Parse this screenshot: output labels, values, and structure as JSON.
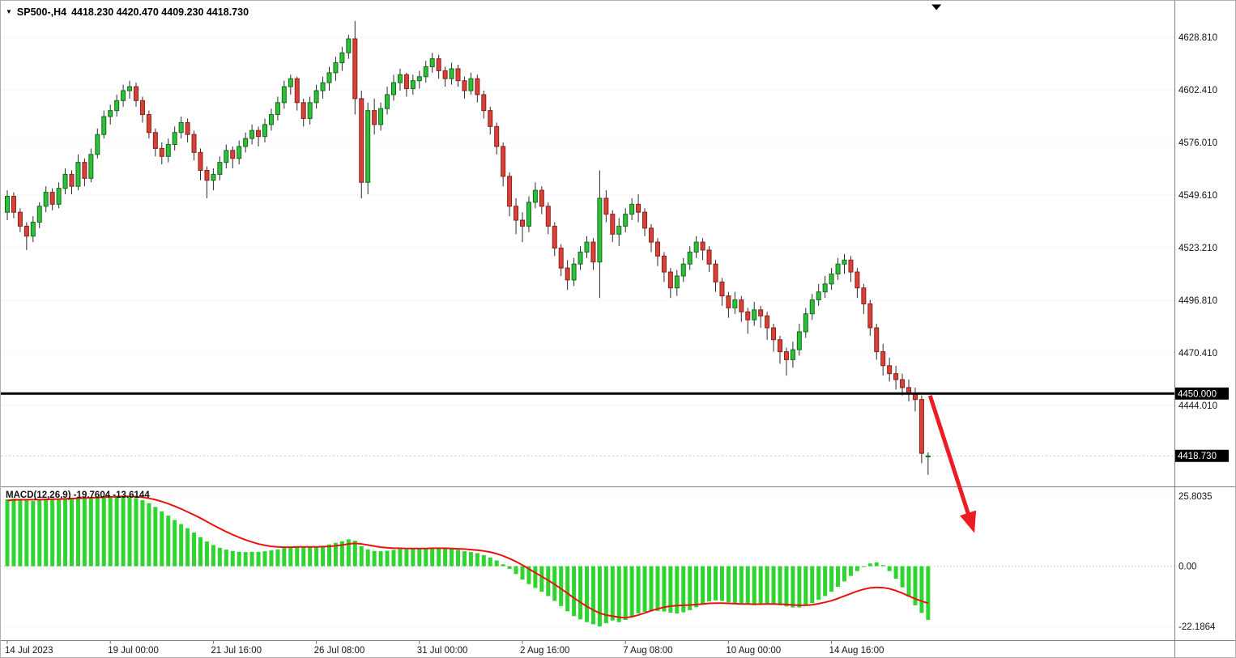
{
  "header": {
    "expander_icon": "▼",
    "symbol": "SP500-,H4",
    "ohlc_text": "4418.230 4420.470 4409.230 4418.730"
  },
  "colors": {
    "bull_fill": "#2fbf3a",
    "bull_stroke": "#0f6d18",
    "bear_fill": "#d7413a",
    "bear_stroke": "#8c1f18",
    "wick": "#2b2b2b",
    "hist": "#2ed52e",
    "signal": "#e8140c",
    "arrow": "#ec1c24",
    "grid": "#dcdcdc",
    "axis_text": "#151515",
    "badge_bg": "#000000",
    "badge_text": "#ffffff",
    "hline": "#000000",
    "separator": "#808080",
    "bid_line": "#cccccc"
  },
  "chart_data": [
    {
      "type": "candlestick",
      "symbol": "SP500-",
      "timeframe": "H4",
      "current_bar": {
        "open": 4418.23,
        "high": 4420.47,
        "low": 4409.23,
        "close": 4418.73
      },
      "horizontal_line_level": 4450.0,
      "y_axis": [
        {
          "value": 4628.81,
          "label": "4628.810"
        },
        {
          "value": 4602.41,
          "label": "4602.410"
        },
        {
          "value": 4576.01,
          "label": "4576.010"
        },
        {
          "value": 4549.61,
          "label": "4549.610"
        },
        {
          "value": 4523.21,
          "label": "4523.210"
        },
        {
          "value": 4496.81,
          "label": "4496.810"
        },
        {
          "value": 4470.41,
          "label": "4470.410"
        },
        {
          "value": 4444.01,
          "label": "4444.010"
        }
      ],
      "badges": [
        {
          "value": 4450.0,
          "label": "4450.000",
          "name": "hline-level-badge"
        },
        {
          "value": 4418.73,
          "label": "4418.730",
          "name": "bid-price-badge"
        }
      ],
      "x_ticks": [
        {
          "bar": 0,
          "label": "14 Jul 2023"
        },
        {
          "bar": 16,
          "label": "19 Jul 00:00"
        },
        {
          "bar": 32,
          "label": "21 Jul 16:00"
        },
        {
          "bar": 48,
          "label": "26 Jul 08:00"
        },
        {
          "bar": 64,
          "label": "31 Jul 00:00"
        },
        {
          "bar": 80,
          "label": "2 Aug 16:00"
        },
        {
          "bar": 96,
          "label": "7 Aug 08:00"
        },
        {
          "bar": 112,
          "label": "10 Aug 00:00"
        },
        {
          "bar": 128,
          "label": "14 Aug 16:00"
        }
      ],
      "candles": [
        [
          4541,
          4552,
          4537,
          4549
        ],
        [
          4549,
          4551,
          4538,
          4541
        ],
        [
          4541,
          4543,
          4531,
          4534
        ],
        [
          4534,
          4536,
          4522,
          4529
        ],
        [
          4529,
          4539,
          4526,
          4536
        ],
        [
          4536,
          4546,
          4533,
          4544
        ],
        [
          4544,
          4554,
          4541,
          4551
        ],
        [
          4551,
          4553,
          4542,
          4545
        ],
        [
          4545,
          4556,
          4543,
          4553
        ],
        [
          4553,
          4563,
          4550,
          4560
        ],
        [
          4560,
          4562,
          4550,
          4554
        ],
        [
          4554,
          4570,
          4552,
          4566
        ],
        [
          4566,
          4568,
          4554,
          4558
        ],
        [
          4558,
          4573,
          4556,
          4570
        ],
        [
          4570,
          4583,
          4568,
          4580
        ],
        [
          4580,
          4592,
          4578,
          4589
        ],
        [
          4589,
          4595,
          4585,
          4592
        ],
        [
          4592,
          4600,
          4589,
          4597
        ],
        [
          4597,
          4605,
          4594,
          4602
        ],
        [
          4602,
          4607,
          4598,
          4604
        ],
        [
          4604,
          4606,
          4594,
          4597
        ],
        [
          4597,
          4599,
          4586,
          4590
        ],
        [
          4590,
          4592,
          4578,
          4581
        ],
        [
          4581,
          4583,
          4569,
          4573
        ],
        [
          4573,
          4576,
          4565,
          4569
        ],
        [
          4569,
          4578,
          4566,
          4575
        ],
        [
          4575,
          4584,
          4572,
          4581
        ],
        [
          4581,
          4589,
          4578,
          4586
        ],
        [
          4586,
          4588,
          4576,
          4580
        ],
        [
          4580,
          4582,
          4567,
          4571
        ],
        [
          4571,
          4573,
          4557,
          4562
        ],
        [
          4562,
          4564,
          4548,
          4557
        ],
        [
          4557,
          4563,
          4552,
          4560
        ],
        [
          4560,
          4569,
          4557,
          4566
        ],
        [
          4566,
          4575,
          4563,
          4572
        ],
        [
          4572,
          4574,
          4563,
          4568
        ],
        [
          4568,
          4577,
          4565,
          4574
        ],
        [
          4574,
          4581,
          4571,
          4578
        ],
        [
          4578,
          4585,
          4575,
          4582
        ],
        [
          4582,
          4584,
          4574,
          4579
        ],
        [
          4579,
          4588,
          4576,
          4585
        ],
        [
          4585,
          4593,
          4582,
          4590
        ],
        [
          4590,
          4599,
          4587,
          4596
        ],
        [
          4596,
          4607,
          4593,
          4604
        ],
        [
          4604,
          4610,
          4600,
          4608
        ],
        [
          4608,
          4609,
          4592,
          4596
        ],
        [
          4596,
          4598,
          4584,
          4588
        ],
        [
          4588,
          4599,
          4585,
          4596
        ],
        [
          4596,
          4605,
          4593,
          4602
        ],
        [
          4602,
          4609,
          4598,
          4606
        ],
        [
          4606,
          4614,
          4602,
          4611
        ],
        [
          4611,
          4619,
          4607,
          4616
        ],
        [
          4616,
          4624,
          4612,
          4621
        ],
        [
          4621,
          4630,
          4618,
          4628
        ],
        [
          4628,
          4637,
          4590,
          4598
        ],
        [
          4598,
          4602,
          4548,
          4556
        ],
        [
          4556,
          4596,
          4550,
          4592
        ],
        [
          4592,
          4598,
          4580,
          4585
        ],
        [
          4585,
          4596,
          4582,
          4593
        ],
        [
          4593,
          4604,
          4590,
          4600
        ],
        [
          4600,
          4610,
          4597,
          4606
        ],
        [
          4606,
          4613,
          4602,
          4610
        ],
        [
          4610,
          4611,
          4599,
          4603
        ],
        [
          4603,
          4610,
          4600,
          4607
        ],
        [
          4607,
          4612,
          4603,
          4609
        ],
        [
          4609,
          4617,
          4606,
          4614
        ],
        [
          4614,
          4621,
          4611,
          4618
        ],
        [
          4618,
          4620,
          4608,
          4612
        ],
        [
          4612,
          4614,
          4604,
          4608
        ],
        [
          4608,
          4616,
          4605,
          4613
        ],
        [
          4613,
          4615,
          4604,
          4607
        ],
        [
          4607,
          4609,
          4598,
          4602
        ],
        [
          4602,
          4611,
          4600,
          4608
        ],
        [
          4608,
          4610,
          4596,
          4600
        ],
        [
          4600,
          4602,
          4588,
          4592
        ],
        [
          4592,
          4594,
          4580,
          4584
        ],
        [
          4584,
          4586,
          4570,
          4574
        ],
        [
          4574,
          4576,
          4554,
          4559
        ],
        [
          4559,
          4561,
          4539,
          4544
        ],
        [
          4544,
          4548,
          4530,
          4537
        ],
        [
          4537,
          4541,
          4526,
          4534
        ],
        [
          4534,
          4549,
          4531,
          4546
        ],
        [
          4546,
          4556,
          4543,
          4552
        ],
        [
          4552,
          4554,
          4540,
          4544
        ],
        [
          4544,
          4546,
          4530,
          4534
        ],
        [
          4534,
          4536,
          4519,
          4523
        ],
        [
          4523,
          4525,
          4509,
          4513
        ],
        [
          4513,
          4517,
          4502,
          4507
        ],
        [
          4507,
          4518,
          4504,
          4515
        ],
        [
          4515,
          4524,
          4512,
          4521
        ],
        [
          4521,
          4529,
          4518,
          4526
        ],
        [
          4526,
          4528,
          4512,
          4516
        ],
        [
          4516,
          4562,
          4498,
          4548
        ],
        [
          4548,
          4552,
          4536,
          4540
        ],
        [
          4540,
          4542,
          4526,
          4530
        ],
        [
          4530,
          4538,
          4524,
          4534
        ],
        [
          4534,
          4543,
          4531,
          4540
        ],
        [
          4540,
          4548,
          4537,
          4545
        ],
        [
          4545,
          4550,
          4536,
          4541
        ],
        [
          4541,
          4543,
          4529,
          4533
        ],
        [
          4533,
          4535,
          4521,
          4526
        ],
        [
          4526,
          4528,
          4514,
          4519
        ],
        [
          4519,
          4521,
          4506,
          4511
        ],
        [
          4511,
          4513,
          4498,
          4503
        ],
        [
          4503,
          4512,
          4499,
          4509
        ],
        [
          4509,
          4518,
          4506,
          4515
        ],
        [
          4515,
          4524,
          4512,
          4521
        ],
        [
          4521,
          4529,
          4518,
          4526
        ],
        [
          4526,
          4528,
          4517,
          4522
        ],
        [
          4522,
          4524,
          4511,
          4515
        ],
        [
          4515,
          4517,
          4501,
          4506
        ],
        [
          4506,
          4508,
          4494,
          4499
        ],
        [
          4499,
          4501,
          4488,
          4493
        ],
        [
          4493,
          4501,
          4490,
          4497
        ],
        [
          4497,
          4499,
          4486,
          4491
        ],
        [
          4491,
          4493,
          4480,
          4487
        ],
        [
          4487,
          4496,
          4484,
          4492
        ],
        [
          4492,
          4494,
          4483,
          4489
        ],
        [
          4489,
          4491,
          4477,
          4483
        ],
        [
          4483,
          4485,
          4471,
          4477
        ],
        [
          4477,
          4479,
          4465,
          4471
        ],
        [
          4471,
          4473,
          4459,
          4467
        ],
        [
          4467,
          4476,
          4463,
          4472
        ],
        [
          4472,
          4485,
          4469,
          4481
        ],
        [
          4481,
          4493,
          4478,
          4490
        ],
        [
          4490,
          4500,
          4487,
          4497
        ],
        [
          4497,
          4505,
          4494,
          4501
        ],
        [
          4501,
          4509,
          4498,
          4505
        ],
        [
          4505,
          4513,
          4502,
          4510
        ],
        [
          4510,
          4518,
          4507,
          4515
        ],
        [
          4515,
          4520,
          4510,
          4517
        ],
        [
          4517,
          4519,
          4506,
          4511
        ],
        [
          4511,
          4513,
          4498,
          4503
        ],
        [
          4503,
          4505,
          4490,
          4495
        ],
        [
          4495,
          4497,
          4479,
          4483
        ],
        [
          4483,
          4485,
          4467,
          4471
        ],
        [
          4471,
          4475,
          4459,
          4464
        ],
        [
          4464,
          4468,
          4456,
          4460
        ],
        [
          4460,
          4464,
          4452,
          4457
        ],
        [
          4457,
          4460,
          4449,
          4453
        ],
        [
          4453,
          4457,
          4446,
          4450
        ],
        [
          4450,
          4453,
          4441,
          4447
        ],
        [
          4447,
          4449,
          4415,
          4420
        ],
        [
          4418.23,
          4420.47,
          4409.23,
          4418.73
        ]
      ]
    },
    {
      "type": "bar+line",
      "label": "MACD(12,26,9) -19.7604 -13.6144",
      "name": "MACD",
      "params": "12,26,9",
      "macd_value": -19.7604,
      "signal_value": -13.6144,
      "axis_labels": [
        {
          "value": 25.8035,
          "label": "25.8035"
        },
        {
          "value": 0,
          "label": "0.00"
        },
        {
          "value": -22.1864,
          "label": "-22.1864"
        }
      ],
      "histogram": [
        24.6,
        24.9,
        24.7,
        24.3,
        24.0,
        24.3,
        24.7,
        24.9,
        24.7,
        25.0,
        25.2,
        25.5,
        25.2,
        25.4,
        25.6,
        25.8,
        25.7,
        25.8,
        25.8,
        25.6,
        25.1,
        24.3,
        23.2,
        21.8,
        20.2,
        18.6,
        17.0,
        15.5,
        14.0,
        12.4,
        10.7,
        9.1,
        7.8,
        6.8,
        6.1,
        5.6,
        5.3,
        5.2,
        5.3,
        5.3,
        5.5,
        5.8,
        6.2,
        6.7,
        7.2,
        7.3,
        7.0,
        6.9,
        7.1,
        7.5,
        8.0,
        8.6,
        9.2,
        9.9,
        9.4,
        7.4,
        6.2,
        5.6,
        5.5,
        5.7,
        6.0,
        6.3,
        6.2,
        6.3,
        6.4,
        6.6,
        6.8,
        6.7,
        6.4,
        6.3,
        6.0,
        5.5,
        5.2,
        4.8,
        4.1,
        3.2,
        2.1,
        0.7,
        -1.0,
        -2.9,
        -4.9,
        -6.6,
        -8.0,
        -9.4,
        -11.0,
        -12.8,
        -14.7,
        -16.6,
        -18.4,
        -19.6,
        -20.6,
        -21.4,
        -22.19,
        -21.0,
        -20.0,
        -20.6,
        -19.8,
        -18.6,
        -17.4,
        -16.8,
        -16.6,
        -16.5,
        -16.7,
        -17.1,
        -17.4,
        -17.0,
        -16.2,
        -15.1,
        -13.9,
        -13.0,
        -12.6,
        -12.8,
        -13.3,
        -13.8,
        -13.9,
        -14.1,
        -14.4,
        -14.2,
        -14.0,
        -14.1,
        -14.4,
        -14.8,
        -15.2,
        -15.2,
        -14.6,
        -13.6,
        -12.4,
        -11.0,
        -9.4,
        -7.6,
        -5.6,
        -3.6,
        -1.8,
        -0.2,
        1.0,
        1.4,
        0.4,
        -1.8,
        -4.6,
        -7.8,
        -11.2,
        -14.4,
        -17.2,
        -19.76
      ],
      "signal": [
        24.2,
        24.4,
        24.5,
        24.5,
        24.5,
        24.5,
        24.6,
        24.7,
        24.7,
        24.8,
        24.9,
        25.0,
        25.1,
        25.2,
        25.3,
        25.4,
        25.5,
        25.6,
        25.7,
        25.7,
        25.6,
        25.4,
        25.0,
        24.5,
        23.8,
        23.0,
        22.1,
        21.1,
        20.0,
        18.9,
        17.7,
        16.4,
        15.1,
        13.9,
        12.7,
        11.6,
        10.6,
        9.7,
        8.9,
        8.2,
        7.7,
        7.3,
        7.1,
        7.0,
        7.0,
        7.1,
        7.1,
        7.1,
        7.1,
        7.2,
        7.3,
        7.5,
        7.8,
        8.2,
        8.4,
        8.2,
        7.8,
        7.4,
        7.0,
        6.8,
        6.6,
        6.6,
        6.5,
        6.5,
        6.5,
        6.5,
        6.6,
        6.6,
        6.6,
        6.5,
        6.4,
        6.3,
        6.1,
        5.9,
        5.6,
        5.2,
        4.6,
        3.8,
        2.8,
        1.7,
        0.4,
        -1.0,
        -2.4,
        -3.8,
        -5.2,
        -6.7,
        -8.3,
        -10.0,
        -11.7,
        -13.3,
        -14.8,
        -16.1,
        -17.3,
        -18.0,
        -18.4,
        -18.8,
        -19.0,
        -18.6,
        -18.0,
        -17.2,
        -16.4,
        -15.7,
        -15.1,
        -14.7,
        -14.5,
        -14.4,
        -14.3,
        -14.1,
        -13.9,
        -13.7,
        -13.6,
        -13.6,
        -13.7,
        -13.8,
        -13.9,
        -13.9,
        -14.0,
        -14.0,
        -13.9,
        -13.9,
        -14.0,
        -14.1,
        -14.3,
        -14.4,
        -14.4,
        -14.2,
        -13.8,
        -13.3,
        -12.7,
        -11.9,
        -11.0,
        -10.1,
        -9.2,
        -8.5,
        -8.0,
        -7.8,
        -7.9,
        -8.3,
        -9.0,
        -9.9,
        -11.0,
        -12.0,
        -12.9,
        -13.6144
      ]
    }
  ],
  "annotations": {
    "arrow": {
      "from_bar": 143.3,
      "from_price": 4449,
      "to_bar": 150.2,
      "to_price": 4380
    },
    "shift_marker_bar": 144.3
  }
}
